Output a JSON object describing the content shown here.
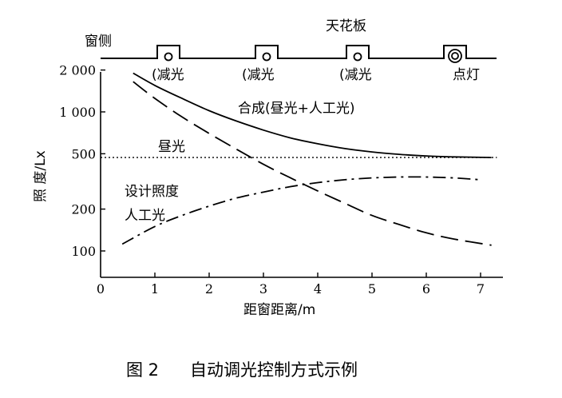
{
  "caption": {
    "figure_no": "图 2",
    "title": "自动调光控制方式示例"
  },
  "diagram": {
    "window_label": "窗侧",
    "ceiling_label": "天花板",
    "fixtures": [
      {
        "label": "(减光",
        "type": "dimmed"
      },
      {
        "label": "(减光",
        "type": "dimmed"
      },
      {
        "label": "(减光",
        "type": "dimmed"
      },
      {
        "label": "点灯",
        "type": "on"
      }
    ]
  },
  "chart_data": {
    "type": "line",
    "ylabel": "照 度/Lx",
    "xlabel": "距窗距离/m",
    "xlim": [
      0,
      7.3
    ],
    "ylim": [
      70,
      2400
    ],
    "yscale": "log",
    "x_ticks": [
      "0",
      "1",
      "2",
      "3",
      "4",
      "5",
      "6",
      "7"
    ],
    "y_ticks": [
      {
        "value": 100,
        "label": "100"
      },
      {
        "value": 200,
        "label": "200"
      },
      {
        "value": 500,
        "label": "500"
      },
      {
        "value": 1000,
        "label": "1 000"
      },
      {
        "value": 2000,
        "label": "2 000"
      }
    ],
    "series": [
      {
        "name": "合成(昼光+人工光)",
        "style": "solid",
        "x": [
          0.6,
          1.0,
          1.5,
          2.0,
          2.5,
          3.0,
          3.5,
          4.0,
          4.5,
          5.0,
          5.5,
          6.0,
          6.5,
          7.2
        ],
        "y": [
          1900,
          1550,
          1250,
          1020,
          860,
          740,
          650,
          590,
          545,
          515,
          495,
          482,
          475,
          470
        ]
      },
      {
        "name": "昼光",
        "style": "dashed",
        "x": [
          0.6,
          1.0,
          1.5,
          2.0,
          2.5,
          3.0,
          3.5,
          4.0,
          4.5,
          5.0,
          5.5,
          6.0,
          6.5,
          7.2
        ],
        "y": [
          1650,
          1250,
          920,
          700,
          540,
          420,
          335,
          270,
          220,
          180,
          155,
          135,
          122,
          110
        ]
      },
      {
        "name": "人工光",
        "style": "dashdot",
        "x": [
          0.4,
          1.0,
          1.5,
          2.0,
          2.5,
          3.0,
          3.5,
          4.0,
          4.5,
          5.0,
          5.5,
          6.0,
          6.5,
          7.0
        ],
        "y": [
          112,
          150,
          180,
          210,
          240,
          265,
          290,
          310,
          325,
          335,
          340,
          340,
          335,
          325
        ]
      }
    ],
    "reference_line": {
      "name": "设计照度",
      "y": 470,
      "style": "dotted"
    }
  }
}
